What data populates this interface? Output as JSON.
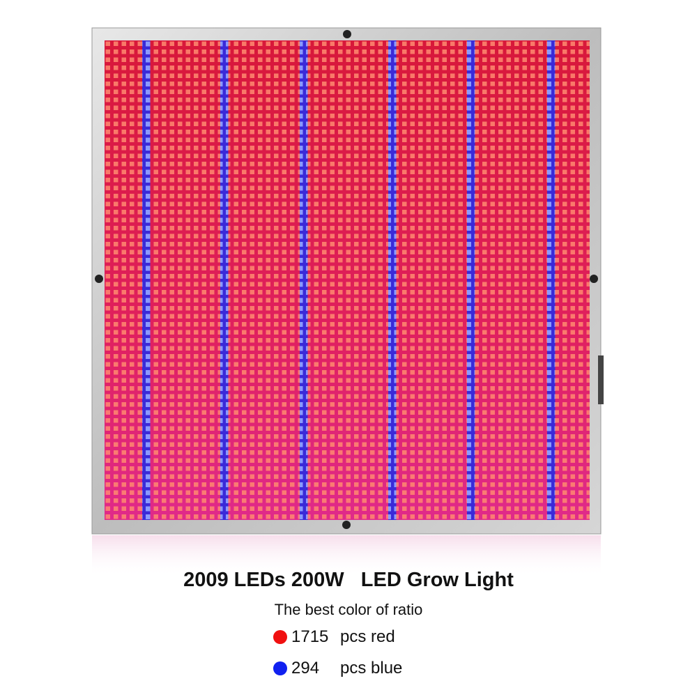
{
  "title": "2009 LEDs 200W   LED Grow Light",
  "subtitle": "The best color of ratio",
  "items": [
    {
      "count": "1715",
      "unit": "pcs red"
    },
    {
      "count": "294",
      "unit": "pcs blue"
    }
  ]
}
